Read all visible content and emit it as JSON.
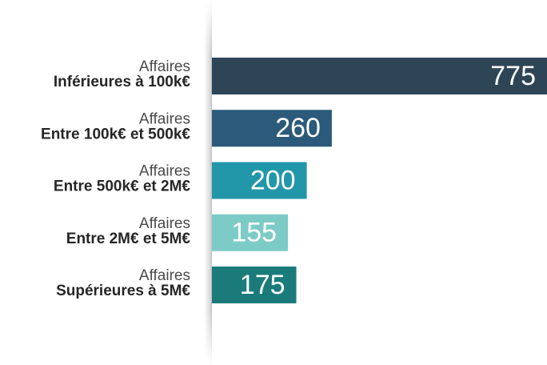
{
  "chart_data": {
    "type": "bar",
    "orientation": "horizontal",
    "categories": [
      [
        "Affaires",
        "Inférieures à 100k€"
      ],
      [
        "Affaires",
        "Entre 100k€ et 500k€"
      ],
      [
        "Affaires",
        "Entre 500k€ et 2M€"
      ],
      [
        "Affaires",
        "Entre 2M€ et 5M€"
      ],
      [
        "Affaires",
        "Supérieures à 5M€"
      ]
    ],
    "values": [
      775,
      260,
      200,
      155,
      175
    ],
    "colors": [
      "#2e4556",
      "#2b5a7a",
      "#2297a9",
      "#7dcbc6",
      "#1b7b7b"
    ],
    "xlim": [
      -27,
      775
    ]
  }
}
